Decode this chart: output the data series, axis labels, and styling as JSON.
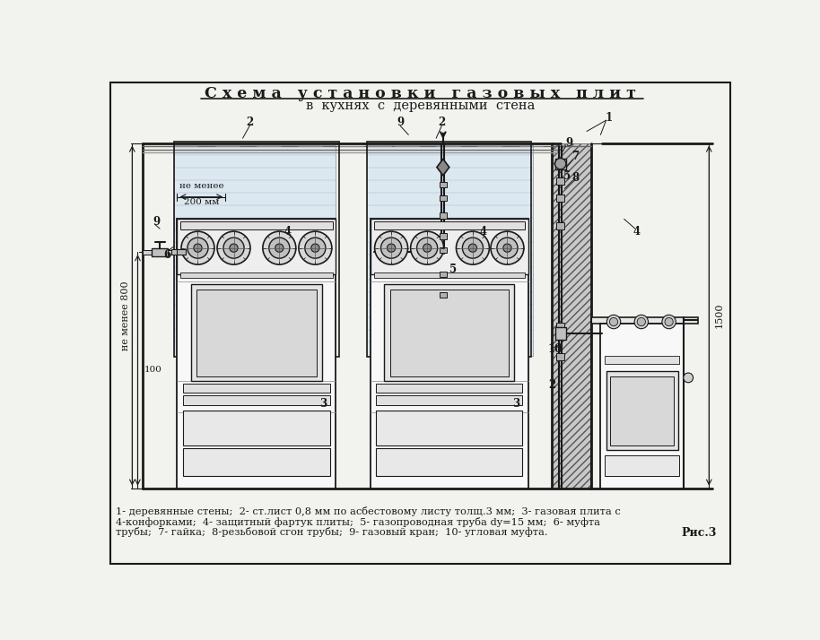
{
  "title_line1": "С х е м а   у с т а н о в к и   г а з о в ы х   п л и т",
  "title_line2": "в  кухнях  с  деревянными  стена",
  "caption_line1": "1- деревянные стены;  2- ст.лист 0,8 мм по асбестовому листу толщ.3 мм;  3- газовая плита с",
  "caption_line2": "4-конфорками;  4- защитный фартук плиты;  5- газопроводная труба dy=15 мм;  6- муфта",
  "caption_line3": "трубы;  7- гайка;  8-резьбовой сгон трубы;  9- газовый кран;  10- угловая муфта.",
  "figure_label": "Рис.3",
  "bg_color": "#f2f2ee",
  "line_color": "#1a1a1a",
  "light_blue": "#dce8f0",
  "stove_fill": "#f8f8f8",
  "panel_fill": "#e8e8e8",
  "wood_fill": "#c8c8c8"
}
